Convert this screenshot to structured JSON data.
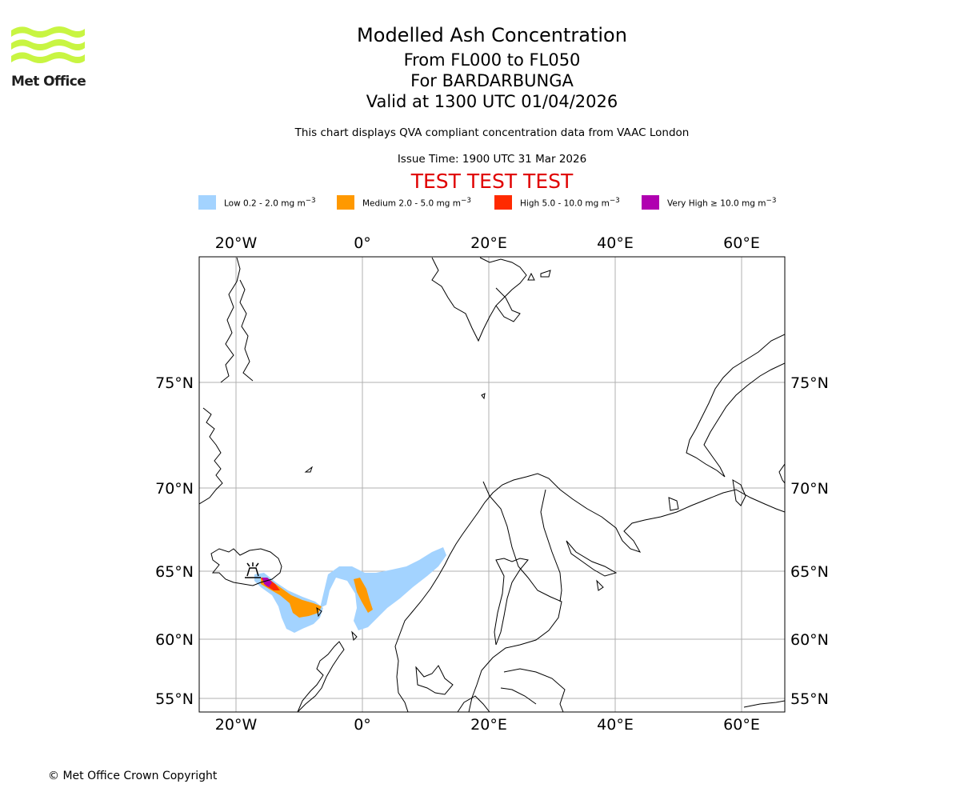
{
  "brand": {
    "name": "Met Office",
    "logo_color": "#c8f542"
  },
  "header": {
    "title": "Modelled Ash Concentration",
    "flight_levels": "From FL000 to FL050",
    "volcano": "For BARDARBUNGA",
    "valid": "Valid at 1300 UTC 01/04/2026",
    "note": "This chart displays QVA compliant concentration data from VAAC London",
    "issue_time": "Issue Time: 1900 UTC 31 Mar 2026",
    "test_banner": "TEST TEST TEST",
    "test_color": "#e00000"
  },
  "legend": [
    {
      "name": "Low",
      "label": "Low 0.2 - 2.0 mg m",
      "color": "#a3d3ff"
    },
    {
      "name": "Medium",
      "label": "Medium 2.0 - 5.0 mg m",
      "color": "#ff9900"
    },
    {
      "name": "High",
      "label": "High 5.0 - 10.0 mg m",
      "color": "#ff2a00"
    },
    {
      "name": "Very High",
      "label": "Very High ≥ 10.0 mg m",
      "color": "#b000b0"
    }
  ],
  "legend_unit_exp": "−3",
  "map": {
    "lon_ticks": [
      "20°W",
      "0°",
      "20°E",
      "40°E",
      "60°E"
    ],
    "lat_ticks": [
      "75°N",
      "70°N",
      "65°N",
      "60°N",
      "55°N"
    ],
    "volcano_marker": "volcano-icon"
  },
  "footer": {
    "copyright": "© Met Office Crown Copyright"
  }
}
